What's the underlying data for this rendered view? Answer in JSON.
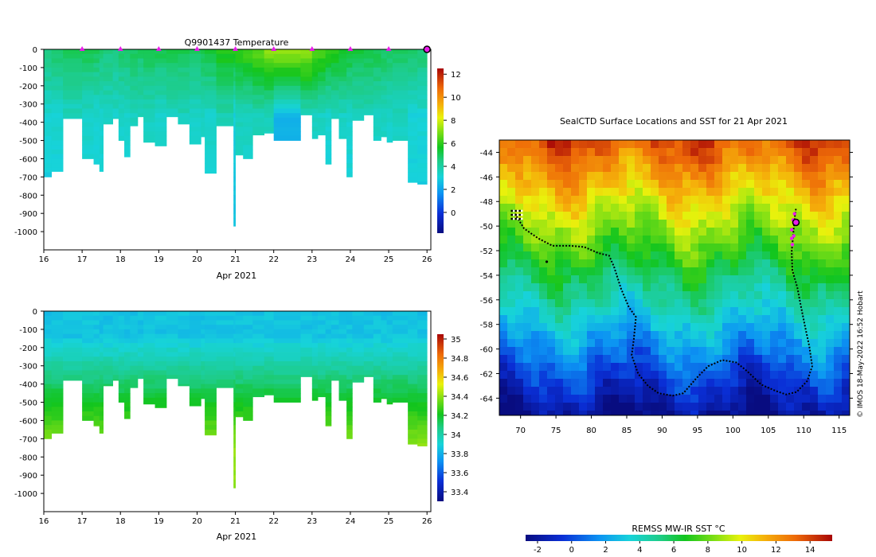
{
  "credit": "© IMOS 18-May-2022 16:52 Hobart",
  "chart_data": [
    {
      "id": "temperature-panel",
      "type": "heatmap",
      "title": "Q9901437  Temperature",
      "xlabel": "Apr 2021",
      "x_ticks": [
        16,
        17,
        18,
        19,
        20,
        21,
        22,
        23,
        24,
        25,
        26
      ],
      "xlim": [
        16,
        26.1
      ],
      "y_ticks": [
        0,
        -100,
        -200,
        -300,
        -400,
        -500,
        -600,
        -700,
        -800,
        -900,
        -1000
      ],
      "ylim": [
        -1100,
        0
      ],
      "profile_markers_day": [
        17,
        18,
        19,
        20,
        21,
        22,
        23,
        24,
        25
      ],
      "latest_profile_day": 26,
      "colorbar": {
        "ticks": [
          0,
          2,
          4,
          6,
          8,
          10,
          12
        ],
        "range": [
          -1.8,
          12.5
        ]
      },
      "profiles": [
        {
          "d0": 16.0,
          "d1": 16.2,
          "depth": 700,
          "surf": 4.7,
          "deep": 3.2
        },
        {
          "d0": 16.2,
          "d1": 16.5,
          "depth": 670,
          "surf": 4.8,
          "deep": 3.3
        },
        {
          "d0": 16.5,
          "d1": 17.0,
          "depth": 380,
          "surf": 4.9,
          "deep": 3.5
        },
        {
          "d0": 17.0,
          "d1": 17.3,
          "depth": 600,
          "surf": 5.0,
          "deep": 3.4
        },
        {
          "d0": 17.3,
          "d1": 17.45,
          "depth": 630,
          "surf": 4.9,
          "deep": 3.3
        },
        {
          "d0": 17.45,
          "d1": 17.55,
          "depth": 670,
          "surf": 4.8,
          "deep": 3.3
        },
        {
          "d0": 17.55,
          "d1": 17.8,
          "depth": 410,
          "surf": 4.6,
          "deep": 3.5
        },
        {
          "d0": 17.8,
          "d1": 17.95,
          "depth": 380,
          "surf": 4.5,
          "deep": 3.4
        },
        {
          "d0": 17.95,
          "d1": 18.1,
          "depth": 500,
          "surf": 4.8,
          "deep": 3.4
        },
        {
          "d0": 18.1,
          "d1": 18.25,
          "depth": 590,
          "surf": 4.9,
          "deep": 3.3
        },
        {
          "d0": 18.25,
          "d1": 18.45,
          "depth": 420,
          "surf": 5.0,
          "deep": 3.6
        },
        {
          "d0": 18.45,
          "d1": 18.6,
          "depth": 370,
          "surf": 4.9,
          "deep": 3.6
        },
        {
          "d0": 18.6,
          "d1": 18.9,
          "depth": 510,
          "surf": 5.1,
          "deep": 3.5
        },
        {
          "d0": 18.9,
          "d1": 19.2,
          "depth": 530,
          "surf": 5.0,
          "deep": 3.4
        },
        {
          "d0": 19.2,
          "d1": 19.5,
          "depth": 370,
          "surf": 5.1,
          "deep": 3.6
        },
        {
          "d0": 19.5,
          "d1": 19.8,
          "depth": 410,
          "surf": 5.0,
          "deep": 3.6
        },
        {
          "d0": 19.8,
          "d1": 20.1,
          "depth": 520,
          "surf": 5.0,
          "deep": 3.4
        },
        {
          "d0": 20.1,
          "d1": 20.2,
          "depth": 480,
          "surf": 5.2,
          "deep": 3.5
        },
        {
          "d0": 20.2,
          "d1": 20.5,
          "depth": 680,
          "surf": 5.3,
          "deep": 3.4
        },
        {
          "d0": 20.5,
          "d1": 20.95,
          "depth": 420,
          "surf": 5.8,
          "deep": 3.8
        },
        {
          "d0": 20.95,
          "d1": 21.0,
          "depth": 970,
          "surf": 5.8,
          "deep": 3.0
        },
        {
          "d0": 21.0,
          "d1": 21.2,
          "depth": 580,
          "surf": 6.0,
          "deep": 3.6
        },
        {
          "d0": 21.2,
          "d1": 21.45,
          "depth": 600,
          "surf": 6.2,
          "deep": 3.5
        },
        {
          "d0": 21.45,
          "d1": 21.75,
          "depth": 470,
          "surf": 6.6,
          "deep": 3.7
        },
        {
          "d0": 21.75,
          "d1": 22.0,
          "depth": 460,
          "surf": 7.0,
          "deep": 3.6
        },
        {
          "d0": 22.0,
          "d1": 22.7,
          "depth": 500,
          "surf": 7.3,
          "deep": 2.4
        },
        {
          "d0": 22.7,
          "d1": 23.0,
          "depth": 360,
          "surf": 7.1,
          "deep": 3.6
        },
        {
          "d0": 23.0,
          "d1": 23.15,
          "depth": 490,
          "surf": 6.5,
          "deep": 3.5
        },
        {
          "d0": 23.15,
          "d1": 23.35,
          "depth": 470,
          "surf": 6.3,
          "deep": 3.5
        },
        {
          "d0": 23.35,
          "d1": 23.5,
          "depth": 630,
          "surf": 6.0,
          "deep": 3.3
        },
        {
          "d0": 23.5,
          "d1": 23.7,
          "depth": 380,
          "surf": 5.8,
          "deep": 3.6
        },
        {
          "d0": 23.7,
          "d1": 23.9,
          "depth": 490,
          "surf": 5.6,
          "deep": 3.5
        },
        {
          "d0": 23.9,
          "d1": 24.05,
          "depth": 700,
          "surf": 5.5,
          "deep": 3.3
        },
        {
          "d0": 24.05,
          "d1": 24.35,
          "depth": 390,
          "surf": 5.3,
          "deep": 3.6
        },
        {
          "d0": 24.35,
          "d1": 24.6,
          "depth": 360,
          "surf": 5.2,
          "deep": 3.6
        },
        {
          "d0": 24.6,
          "d1": 24.8,
          "depth": 500,
          "surf": 5.1,
          "deep": 3.5
        },
        {
          "d0": 24.8,
          "d1": 24.95,
          "depth": 480,
          "surf": 5.0,
          "deep": 3.5
        },
        {
          "d0": 24.95,
          "d1": 25.1,
          "depth": 510,
          "surf": 5.0,
          "deep": 3.4
        },
        {
          "d0": 25.1,
          "d1": 25.5,
          "depth": 500,
          "surf": 4.9,
          "deep": 3.5
        },
        {
          "d0": 25.5,
          "d1": 25.75,
          "depth": 730,
          "surf": 4.8,
          "deep": 3.2
        },
        {
          "d0": 25.75,
          "d1": 26.0,
          "depth": 740,
          "surf": 4.8,
          "deep": 3.2
        }
      ]
    },
    {
      "id": "salinity-panel",
      "type": "heatmap",
      "title": "",
      "xlabel": "Apr 2021",
      "x_ticks": [
        16,
        17,
        18,
        19,
        20,
        21,
        22,
        23,
        24,
        25,
        26
      ],
      "xlim": [
        16,
        26.1
      ],
      "y_ticks": [
        0,
        -100,
        -200,
        -300,
        -400,
        -500,
        -600,
        -700,
        -800,
        -900,
        -1000
      ],
      "ylim": [
        -1100,
        0
      ],
      "colorbar": {
        "ticks": [
          33.4,
          33.6,
          33.8,
          34,
          34.2,
          34.4,
          34.6,
          34.8,
          35
        ],
        "range": [
          33.3,
          35.05
        ]
      },
      "surface_value": 33.85,
      "halocline_value": 34.15,
      "deep_value": 34.4
    },
    {
      "id": "sst-map",
      "type": "heatmap",
      "title": "SealCTD Surface Locations and SST for 21 Apr 2021",
      "x_ticks": [
        70,
        75,
        80,
        85,
        90,
        95,
        100,
        105,
        110,
        115
      ],
      "xlim": [
        67,
        116.5
      ],
      "y_ticks": [
        -44,
        -46,
        -48,
        -50,
        -52,
        -54,
        -56,
        -58,
        -60,
        -62,
        -64
      ],
      "ylim": [
        -65.4,
        -43.0
      ],
      "colorbar": {
        "label": "REMSS MW-IR SST °C",
        "ticks": [
          -2,
          0,
          2,
          4,
          6,
          8,
          10,
          12,
          14
        ],
        "range": [
          -2.7,
          15.3
        ]
      },
      "track": [
        [
          69.2,
          -49.0
        ],
        [
          70.5,
          -50.2
        ],
        [
          72.5,
          -51.0
        ],
        [
          74.5,
          -51.6
        ],
        [
          77,
          -51.6
        ],
        [
          79,
          -51.7
        ],
        [
          81,
          -52.2
        ],
        [
          82.5,
          -52.4
        ],
        [
          83.2,
          -53.3
        ],
        [
          84.2,
          -55.1
        ],
        [
          85.3,
          -56.6
        ],
        [
          86.3,
          -57.4
        ],
        [
          86.0,
          -59.2
        ],
        [
          85.7,
          -60.5
        ],
        [
          86.6,
          -62.0
        ],
        [
          88,
          -63.0
        ],
        [
          89.5,
          -63.6
        ],
        [
          91.5,
          -63.8
        ],
        [
          93,
          -63.6
        ],
        [
          94.8,
          -62.4
        ],
        [
          96.5,
          -61.4
        ],
        [
          98.5,
          -60.9
        ],
        [
          100.5,
          -61.1
        ],
        [
          102,
          -61.8
        ],
        [
          104,
          -62.9
        ],
        [
          106,
          -63.4
        ],
        [
          107.5,
          -63.7
        ],
        [
          109,
          -63.5
        ],
        [
          110.5,
          -62.6
        ],
        [
          111.2,
          -61.4
        ],
        [
          110.8,
          -59.8
        ],
        [
          110.2,
          -58.2
        ],
        [
          109.6,
          -56.5
        ],
        [
          109.1,
          -55.0
        ],
        [
          108.4,
          -53.6
        ],
        [
          108.3,
          -52.1
        ],
        [
          108.5,
          -50.8
        ],
        [
          108.7,
          -49.4
        ],
        [
          108.9,
          -48.6
        ]
      ],
      "start_cluster": [
        69.3,
        -49.2
      ],
      "isolated_point": [
        73.7,
        -52.9
      ],
      "magenta_points": [
        [
          108.7,
          -49.0
        ],
        [
          108.5,
          -49.5
        ],
        [
          108.3,
          -50.3
        ],
        [
          108.3,
          -51.0
        ],
        [
          108.4,
          -51.5
        ],
        [
          108.6,
          -50.8
        ]
      ],
      "current_location": [
        108.9,
        -49.7
      ]
    }
  ]
}
